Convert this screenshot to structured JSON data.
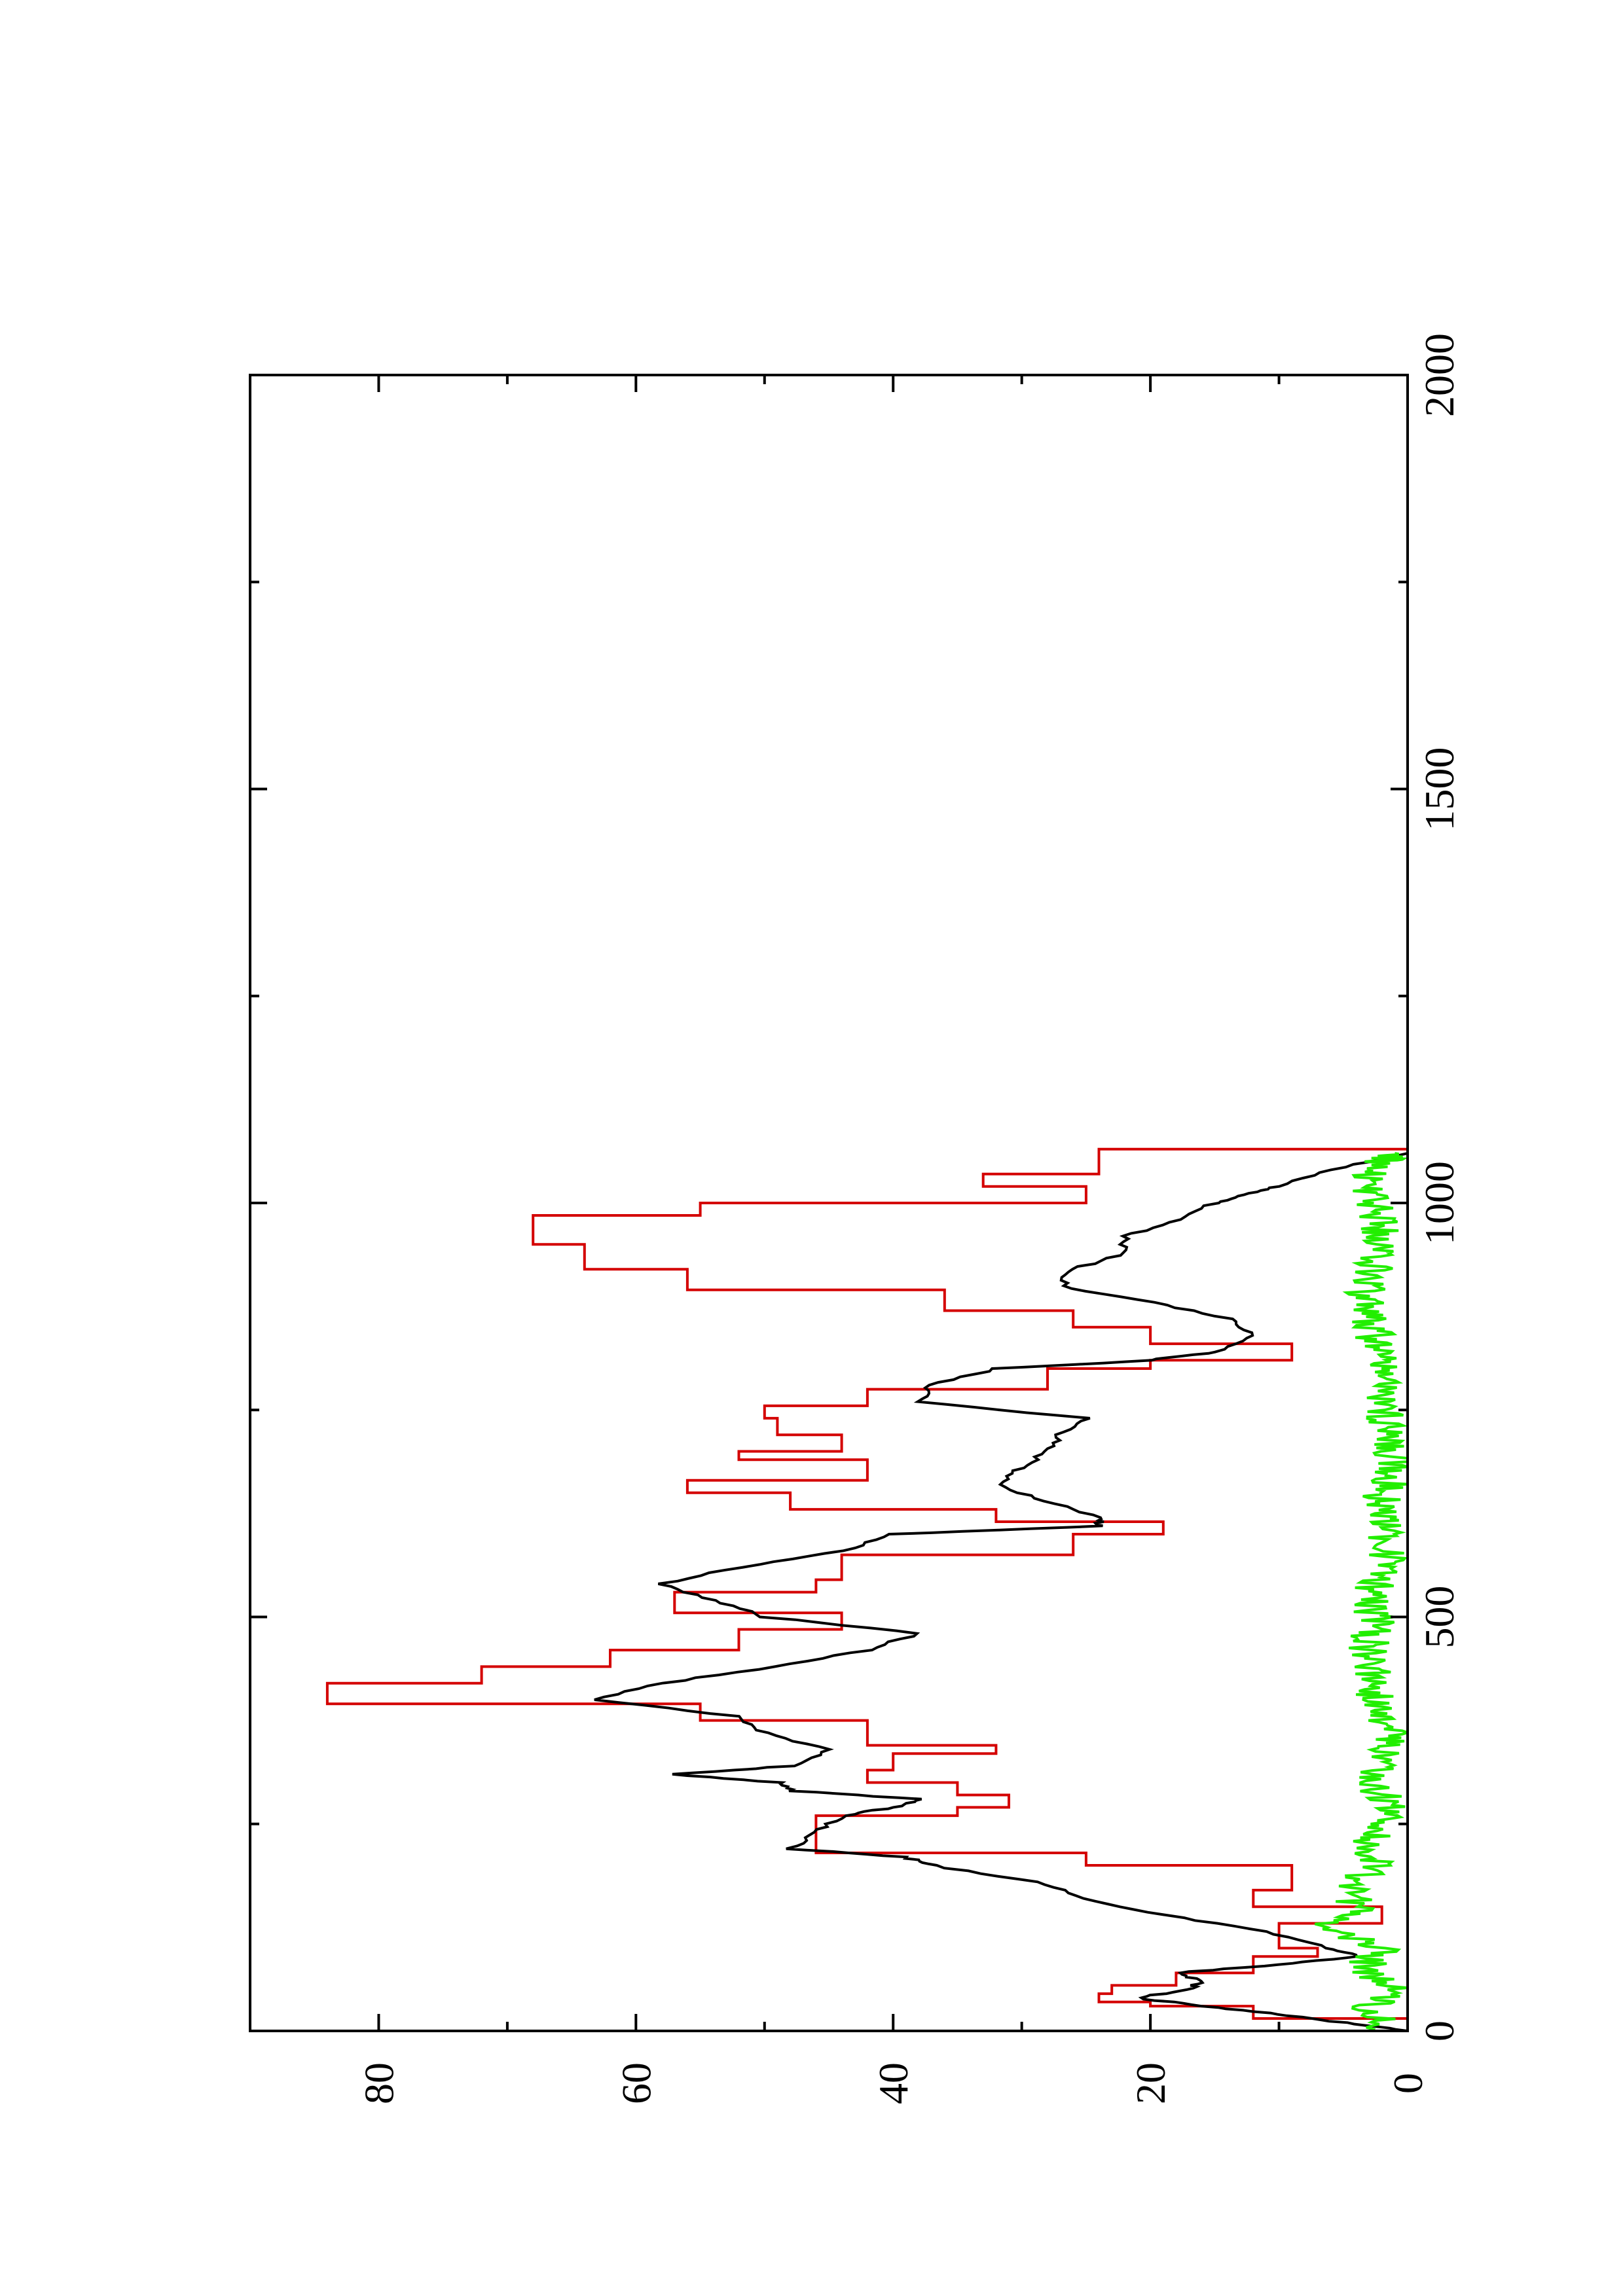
{
  "chart_data": {
    "type": "line",
    "orientation": "rotated-90-ccw",
    "title": "",
    "xlabel": "",
    "ylabel": "",
    "xlim": [
      0,
      2000
    ],
    "ylim": [
      0,
      90
    ],
    "x_ticks": [
      {
        "value": 0,
        "label": "0"
      },
      {
        "value": 500,
        "label": "500"
      },
      {
        "value": 1000,
        "label": "1000"
      },
      {
        "value": 1500,
        "label": "1500"
      },
      {
        "value": 2000,
        "label": "2000"
      }
    ],
    "x_minor_ticks": [
      250,
      750,
      1250,
      1750
    ],
    "y_ticks": [
      {
        "value": 0,
        "label": "0"
      },
      {
        "value": 20,
        "label": "20"
      },
      {
        "value": 40,
        "label": "40"
      },
      {
        "value": 60,
        "label": "60"
      },
      {
        "value": 80,
        "label": "80"
      }
    ],
    "y_minor_ticks": [
      10,
      30,
      50,
      70
    ],
    "grid": false,
    "legend": "none",
    "series": [
      {
        "color": "#d40000",
        "style": "step",
        "x": [
          0,
          15,
          30,
          35,
          45,
          55,
          70,
          90,
          100,
          130,
          150,
          170,
          200,
          215,
          240,
          260,
          270,
          285,
          300,
          315,
          335,
          345,
          375,
          395,
          420,
          440,
          460,
          485,
          505,
          530,
          545,
          575,
          600,
          615,
          630,
          650,
          665,
          690,
          700,
          720,
          740,
          755,
          775,
          800,
          810,
          830,
          850,
          870,
          895,
          920,
          950,
          985,
          1000,
          1020,
          1035,
          1065
        ],
        "y": [
          0,
          12,
          20,
          24,
          23,
          18,
          12,
          7,
          10,
          2,
          12,
          9,
          25,
          46,
          46,
          35,
          31,
          35,
          42,
          40,
          32,
          42,
          55,
          84,
          72,
          62,
          52,
          44,
          57,
          46,
          44,
          26,
          19,
          32,
          48,
          56,
          42,
          52,
          44,
          49,
          50,
          42,
          28,
          20,
          9,
          20,
          26,
          36,
          56,
          64,
          68,
          55,
          25,
          33,
          24,
          0
        ]
      },
      {
        "color": "#000000",
        "style": "line",
        "x": [
          0,
          10,
          20,
          30,
          40,
          50,
          60,
          70,
          80,
          90,
          100,
          120,
          140,
          160,
          180,
          200,
          210,
          220,
          240,
          260,
          270,
          280,
          290,
          300,
          310,
          320,
          340,
          360,
          380,
          400,
          420,
          440,
          460,
          480,
          500,
          520,
          540,
          560,
          580,
          600,
          610,
          620,
          640,
          660,
          680,
          700,
          720,
          740,
          760,
          780,
          800,
          810,
          820,
          840,
          860,
          880,
          900,
          920,
          940,
          960,
          980,
          1000,
          1010,
          1020,
          1040,
          1060
        ],
        "y": [
          0,
          5,
          10,
          16,
          21,
          17,
          16,
          18,
          10,
          4,
          6,
          11,
          19,
          25,
          29,
          37,
          39,
          48,
          46,
          44,
          40,
          38,
          48,
          49,
          57,
          48,
          45,
          50,
          52,
          63,
          58,
          49,
          42,
          38,
          50,
          54,
          58,
          52,
          44,
          40,
          24,
          24,
          28,
          32,
          30,
          28,
          27,
          25,
          38,
          37,
          32,
          20,
          15,
          12,
          14,
          20,
          27,
          26,
          22,
          22,
          18,
          15,
          13,
          10,
          6,
          0
        ]
      },
      {
        "color": "#22ee00",
        "style": "noisy",
        "x": [
          0,
          25,
          50,
          75,
          100,
          125,
          150,
          175,
          200,
          225,
          250,
          275,
          300,
          325,
          350,
          375,
          400,
          425,
          450,
          475,
          500,
          525,
          550,
          575,
          600,
          625,
          650,
          675,
          700,
          725,
          750,
          775,
          800,
          825,
          850,
          875,
          900,
          925,
          950,
          975,
          1000,
          1025,
          1050,
          1060
        ],
        "y": [
          1.5,
          3,
          1,
          3.5,
          2,
          6,
          4,
          4.5,
          2.5,
          3,
          2,
          1.5,
          3,
          2,
          1,
          2,
          2.5,
          2.5,
          3,
          3,
          2.5,
          3,
          2,
          1.5,
          2,
          1.5,
          2,
          1,
          1,
          1.5,
          2,
          1.5,
          1.5,
          2,
          3,
          3.5,
          3,
          2.5,
          2.5,
          2,
          2.5,
          3,
          2,
          1
        ]
      }
    ]
  }
}
